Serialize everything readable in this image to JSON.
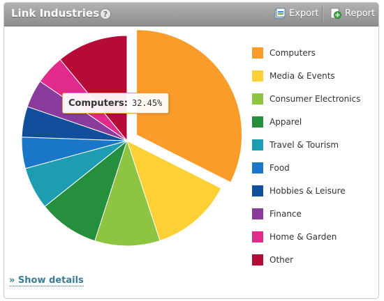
{
  "header": {
    "title": "Link Industries",
    "help": "?",
    "export_label": "Export",
    "report_label": "Report"
  },
  "tooltip": {
    "label": "Computers:",
    "value": "32.45%"
  },
  "footer": {
    "show_details": "» Show details"
  },
  "chart_data": {
    "type": "pie",
    "title": "Link Industries",
    "exploded": "Computers",
    "series": [
      {
        "name": "Computers",
        "value": 32.45,
        "color": "#fa9c2a"
      },
      {
        "name": "Media & Events",
        "value": 12.5,
        "color": "#fdd135"
      },
      {
        "name": "Consumer Electronics",
        "value": 10.0,
        "color": "#8dc441"
      },
      {
        "name": "Apparel",
        "value": 9.3,
        "color": "#268f3e"
      },
      {
        "name": "Travel & Tourism",
        "value": 6.5,
        "color": "#1d9cb2"
      },
      {
        "name": "Food",
        "value": 4.8,
        "color": "#1976c8"
      },
      {
        "name": "Hobbies & Leisure",
        "value": 4.7,
        "color": "#114f9c"
      },
      {
        "name": "Finance",
        "value": 4.3,
        "color": "#8a3c9c"
      },
      {
        "name": "Home & Garden",
        "value": 4.5,
        "color": "#e12a8a"
      },
      {
        "name": "Other",
        "value": 10.95,
        "color": "#b60b37"
      }
    ],
    "legend": "right"
  }
}
